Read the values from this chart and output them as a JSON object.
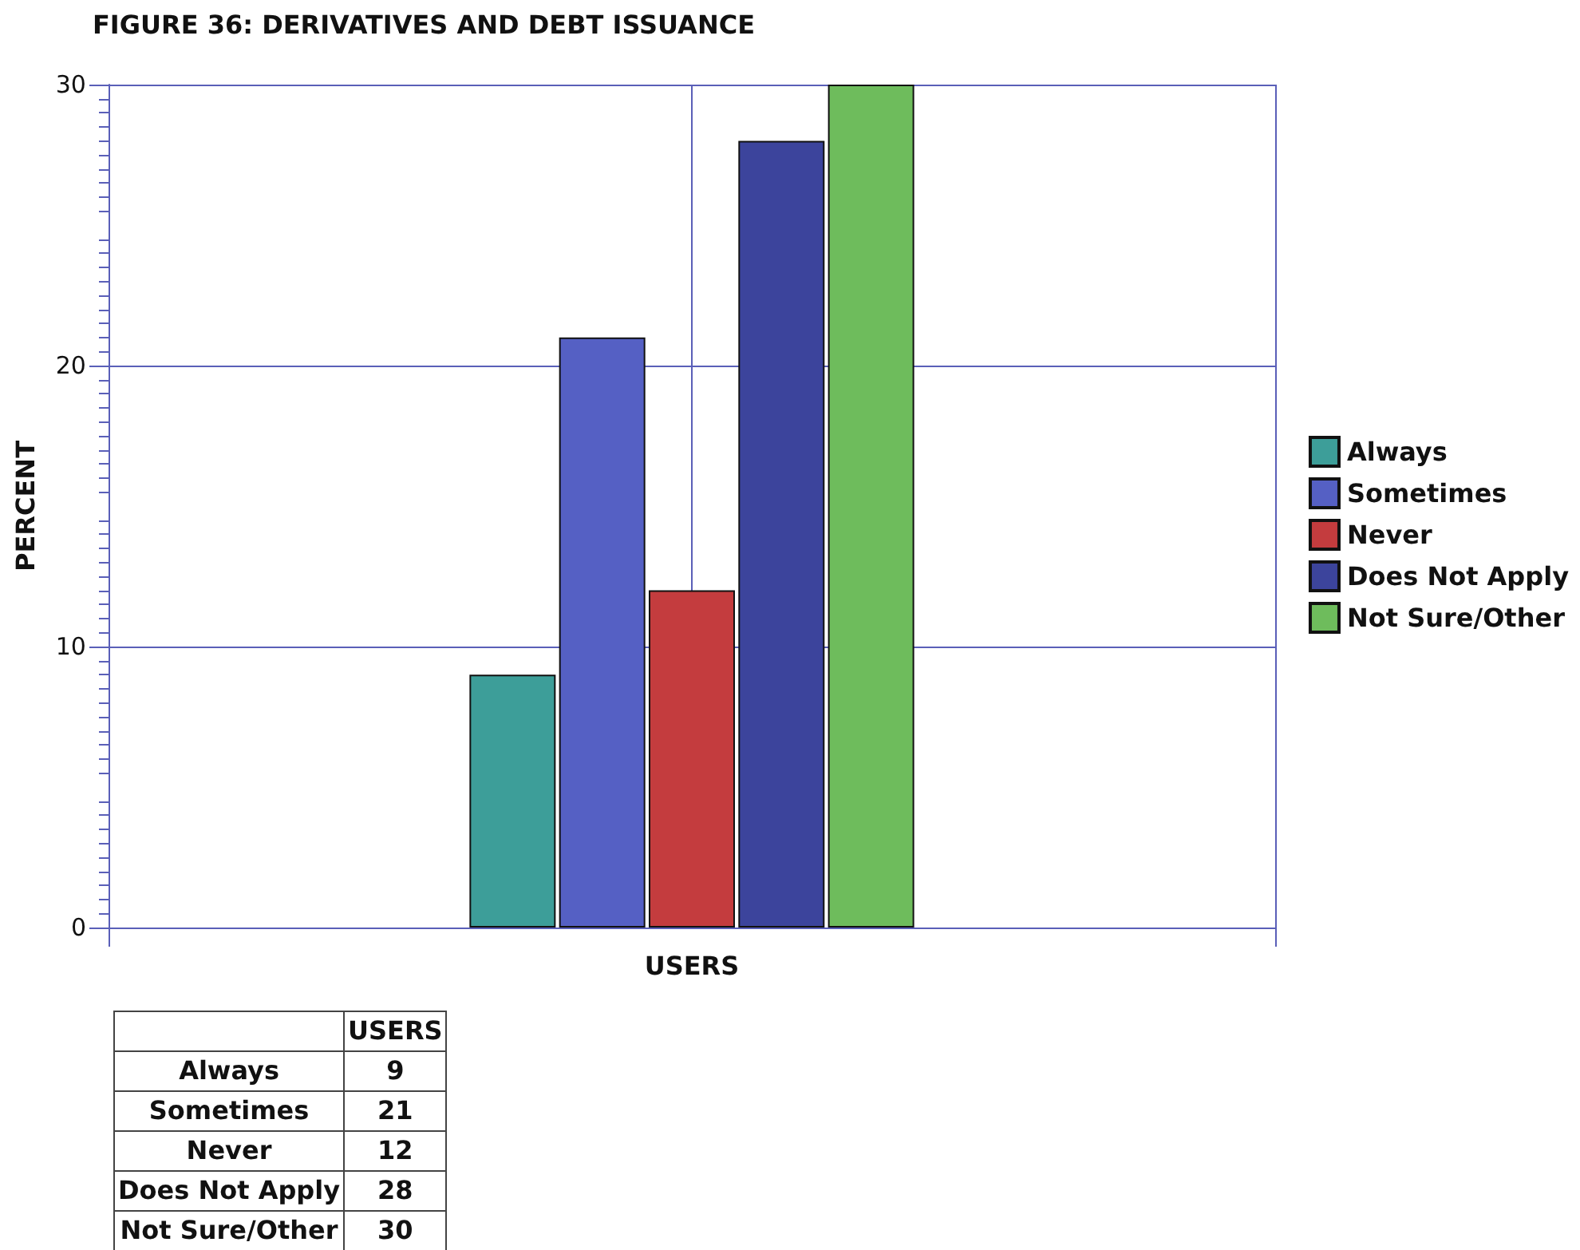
{
  "chart_data": {
    "type": "bar",
    "title": "FIGURE 36: DERIVATIVES AND DEBT ISSUANCE",
    "ylabel": "PERCENT",
    "categories": [
      "USERS"
    ],
    "series": [
      {
        "name": "Always",
        "color": "#3d9e99",
        "values": [
          9
        ]
      },
      {
        "name": "Sometimes",
        "color": "#5560c4",
        "values": [
          21
        ]
      },
      {
        "name": "Never",
        "color": "#c43c3e",
        "values": [
          12
        ]
      },
      {
        "name": "Does Not Apply",
        "color": "#3c449c",
        "values": [
          28
        ]
      },
      {
        "name": "Not Sure/Other",
        "color": "#6ebc5c",
        "values": [
          30
        ]
      }
    ],
    "annotations": [
      "9",
      "21",
      "12",
      "28",
      "30"
    ],
    "ylim": [
      0,
      30
    ],
    "yticks": [
      0,
      10,
      20,
      30
    ],
    "grid": true,
    "legend": "right"
  }
}
